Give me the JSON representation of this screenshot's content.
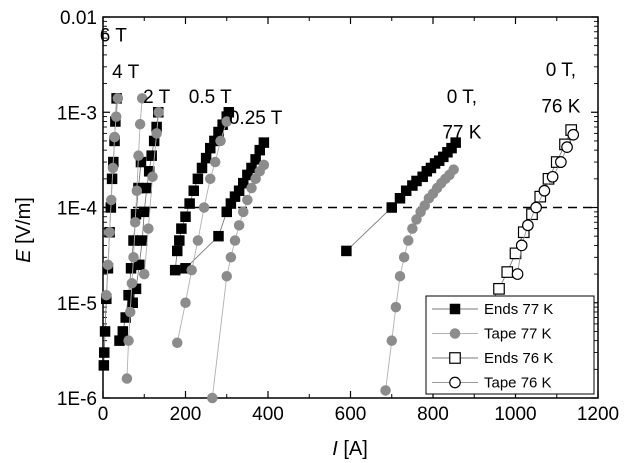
{
  "chart_data": {
    "type": "scatter",
    "xlabel": "I",
    "xunit": " [A]",
    "ylabel": "E",
    "yunit": " [V/m]",
    "xlim": [
      0,
      1200
    ],
    "ylim": [
      1e-06,
      0.01
    ],
    "yscale": "log",
    "xticks": [
      0,
      200,
      400,
      600,
      800,
      1000,
      1200
    ],
    "xtick_labels": [
      "0",
      "200",
      "400",
      "600",
      "800",
      "1000",
      "1200"
    ],
    "yticks": [
      1e-06,
      1e-05,
      0.0001,
      0.001,
      0.01
    ],
    "ytick_labels": [
      "1E-6",
      "1E-5",
      "1E-4",
      "1E-3",
      "0.01"
    ],
    "reference_line": {
      "y": 0.0001,
      "style": "dashed"
    },
    "legend_position": "bottom-right",
    "annotations": [
      {
        "text": "6 T",
        "x": 25,
        "y": 0.0055
      },
      {
        "text": "4 T",
        "x": 55,
        "y": 0.0023
      },
      {
        "text": "2 T",
        "x": 130,
        "y": 0.00125
      },
      {
        "text": "0.5 T",
        "x": 260,
        "y": 0.00125
      },
      {
        "text": "0.25 T",
        "x": 370,
        "y": 0.00075
      },
      {
        "text": "0 T,",
        "x": 870,
        "y": 0.00125
      },
      {
        "text": "77 K",
        "x": 870,
        "y": 0.00053
      },
      {
        "text": "0 T,",
        "x": 1110,
        "y": 0.0024
      },
      {
        "text": "76 K",
        "x": 1110,
        "y": 0.001
      }
    ],
    "series": [
      {
        "name": "Ends 77 K",
        "marker": "square",
        "filled": true,
        "color": "#000000",
        "line_color": "#7a7a7a",
        "groups": [
          {
            "x": [
              2,
              3,
              5,
              8,
              12,
              16,
              19,
              22,
              25,
              28,
              30,
              33
            ],
            "y": [
              2.2e-06,
              3e-06,
              5e-06,
              1.1e-05,
              2.3e-05,
              5.5e-05,
              0.0001,
              0.0002,
              0.0003,
              0.0005,
              0.0008,
              0.0014
            ]
          },
          {
            "x": [
              40,
              48,
              55,
              62,
              68,
              74,
              80,
              86,
              92
            ],
            "y": [
              4e-06,
              5e-06,
              7e-06,
              1.2e-05,
              2.3e-05,
              4.5e-05,
              8.5e-05,
              0.00016,
              0.0003
            ]
          },
          {
            "x": [
              72,
              80,
              88,
              95,
              100,
              106,
              112,
              118,
              124,
              130,
              134
            ],
            "y": [
              1e-05,
              1.4e-05,
              2.5e-05,
              4.5e-05,
              9e-05,
              0.00016,
              0.00024,
              0.00035,
              0.0005,
              0.0007,
              0.001
            ]
          },
          {
            "x": [
              175,
              180,
              185,
              190,
              200,
              210,
              220,
              230,
              240,
              250,
              260,
              270,
              280,
              290,
              300,
              305
            ],
            "y": [
              2.2e-05,
              3.5e-05,
              4.5e-05,
              6e-05,
              8e-05,
              0.00011,
              0.00015,
              0.0002,
              0.00026,
              0.00033,
              0.00042,
              0.0005,
              0.00062,
              0.00074,
              0.0009,
              0.001
            ]
          },
          {
            "x": [
              200,
              280,
              300,
              310,
              320,
              330,
              340,
              350,
              360,
              370,
              380,
              390
            ],
            "y": [
              2.3e-05,
              5e-05,
              9e-05,
              0.00011,
              0.00013,
              0.00015,
              0.00018,
              0.00022,
              0.00026,
              0.00032,
              0.0004,
              0.00048
            ]
          },
          {
            "x": [
              590,
              700,
              720,
              735,
              750,
              760,
              775,
              785,
              795,
              805,
              815,
              825,
              835,
              845,
              855
            ],
            "y": [
              3.5e-05,
              0.0001,
              0.000125,
              0.00015,
              0.00017,
              0.00019,
              0.00021,
              0.00024,
              0.00026,
              0.00029,
              0.00031,
              0.00034,
              0.00038,
              0.00042,
              0.00048
            ]
          }
        ]
      },
      {
        "name": "Tape 77 K",
        "marker": "circle",
        "filled": true,
        "color": "#8c8c8c",
        "line_color": "#b0b0b0",
        "groups": [
          {
            "x": [
              8,
              12,
              16,
              20,
              24,
              28,
              32,
              36
            ],
            "y": [
              1.2e-05,
              2.5e-05,
              5.5e-05,
              0.00012,
              0.00026,
              0.00055,
              0.0009,
              0.0014
            ]
          },
          {
            "x": [
              58,
              62,
              66,
              70,
              74,
              78,
              82,
              86,
              90,
              95
            ],
            "y": [
              1.6e-06,
              4e-06,
              8e-06,
              1.6e-05,
              3e-05,
              7e-05,
              0.00015,
              0.00035,
              0.00075,
              0.0014
            ]
          },
          {
            "x": [
              100,
              110,
              120,
              130,
              135
            ],
            "y": [
              2e-05,
              6e-05,
              0.00021,
              0.0006,
              0.001
            ]
          },
          {
            "x": [
              180,
              200,
              215,
              230,
              245,
              260,
              272,
              285,
              300
            ],
            "y": [
              3.8e-06,
              1e-05,
              2.2e-05,
              4.5e-05,
              0.0001,
              0.0002,
              0.0003,
              0.0005,
              0.0008
            ]
          },
          {
            "x": [
              265,
              300,
              310,
              320,
              330,
              340,
              350,
              360,
              370,
              380,
              390
            ],
            "y": [
              1e-06,
              1.9e-05,
              3e-05,
              4.5e-05,
              6.5e-05,
              9e-05,
              0.00012,
              0.00016,
              0.0002,
              0.00024,
              0.00028
            ]
          },
          {
            "x": [
              685,
              700,
              710,
              720,
              730,
              740,
              750,
              760,
              770,
              780,
              790,
              800,
              810,
              820,
              830,
              840,
              850
            ],
            "y": [
              1.2e-06,
              4e-06,
              9e-06,
              1.9e-05,
              3e-05,
              4.5e-05,
              6e-05,
              7.5e-05,
              9e-05,
              0.000105,
              0.000125,
              0.00014,
              0.00016,
              0.00018,
              0.0002,
              0.00022,
              0.00025
            ]
          }
        ]
      },
      {
        "name": "Ends 76 K",
        "marker": "square",
        "filled": false,
        "color": "#000000",
        "line_color": "#7a7a7a",
        "groups": [
          {
            "x": [
              935,
              960,
              980,
              1000,
              1020,
              1040,
              1060,
              1080,
              1100,
              1120,
              1135
            ],
            "y": [
              9e-06,
              1.4e-05,
              2.1e-05,
              3.3e-05,
              5.5e-05,
              8.5e-05,
              0.00013,
              0.0002,
              0.0003,
              0.00046,
              0.00065
            ]
          }
        ]
      },
      {
        "name": "Tape 76 K",
        "marker": "circle",
        "filled": false,
        "color": "#000000",
        "line_color": "#9a9a9a",
        "groups": [
          {
            "x": [
              1005,
              1015,
              1030,
              1050,
              1070,
              1090,
              1110,
              1125,
              1140
            ],
            "y": [
              2e-05,
              4e-05,
              6.5e-05,
              0.0001,
              0.00015,
              0.00021,
              0.0003,
              0.00043,
              0.00058
            ]
          }
        ]
      }
    ]
  }
}
